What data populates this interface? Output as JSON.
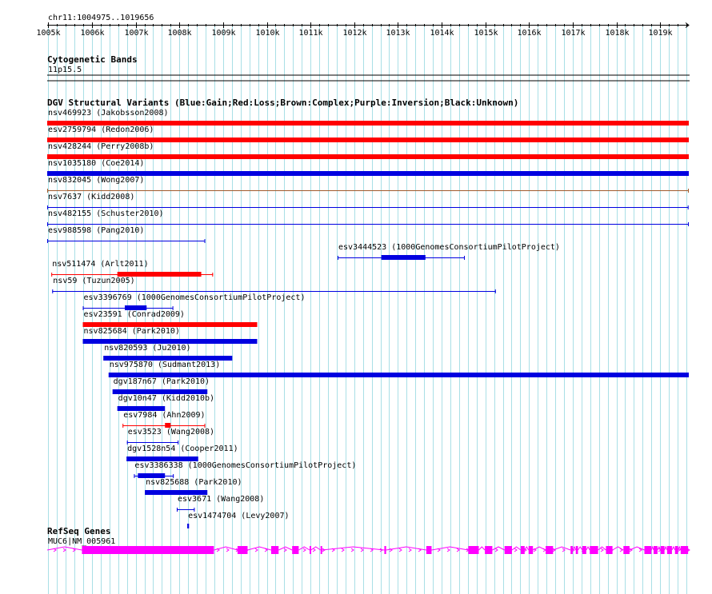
{
  "region": {
    "label": "chr11:1004975..1019656",
    "start": 1004975,
    "end": 1019656
  },
  "ruler": {
    "ticks": [
      "1005k",
      "1006k",
      "1007k",
      "1008k",
      "1009k",
      "1010k",
      "1011k",
      "1012k",
      "1013k",
      "1014k",
      "1015k",
      "1016k",
      "1017k",
      "1018k",
      "1019k"
    ]
  },
  "tracks": {
    "cytoband": {
      "title": "Cytogenetic Bands",
      "band_label": "11p15.5"
    },
    "dgv": {
      "title": "DGV Structural Variants (Blue:Gain;Red:Loss;Brown:Complex;Purple:Inversion;Black:Unknown)"
    },
    "refseq": {
      "title": "RefSeq Genes",
      "gene_label": "MUC6|NM_005961"
    }
  },
  "colors": {
    "gain": "#0000e0",
    "loss": "#ff0000",
    "complex": "#a05a2c",
    "gene": "#ff00ff",
    "grid": "#a9dfe6"
  },
  "variants": [
    {
      "label": "nsv469923 (Jakobsson2008)",
      "type": "loss",
      "start": 1004975,
      "end": 1019656,
      "style": "solid"
    },
    {
      "label": "esv2759794 (Redon2006)",
      "type": "loss",
      "start": 1004975,
      "end": 1019656,
      "style": "solid"
    },
    {
      "label": "nsv428244 (Perry2008b)",
      "type": "loss",
      "start": 1004975,
      "end": 1019656,
      "style": "solid"
    },
    {
      "label": "nsv1035180 (Coe2014)",
      "type": "gain",
      "start": 1004975,
      "end": 1019656,
      "style": "solid"
    },
    {
      "label": "nsv832045 (Wong2007)",
      "type": "complex",
      "start": 1004975,
      "end": 1019656,
      "style": "line"
    },
    {
      "label": "nsv7637 (Kidd2008)",
      "type": "gain",
      "start": 1004975,
      "end": 1019650,
      "style": "line"
    },
    {
      "label": "nsv482155 (Schuster2010)",
      "type": "gain",
      "start": 1004975,
      "end": 1019656,
      "style": "line"
    },
    {
      "label": "esv988598 (Pang2010)",
      "type": "gain",
      "start": 1004975,
      "end": 1008590,
      "style": "line"
    },
    {
      "label": "esv3444523 (1000GenomesConsortiumPilotProject)",
      "type": "gain",
      "start": 1011620,
      "end": 1014530,
      "style": "interval",
      "inner_start": 1012620,
      "inner_end": 1013630
    },
    {
      "label": "nsv511474 (Arlt2011)",
      "type": "loss",
      "start": 1005070,
      "end": 1008770,
      "style": "interval",
      "inner_start": 1006580,
      "inner_end": 1008500
    },
    {
      "label": "nsv59 (Tuzun2005)",
      "type": "gain",
      "start": 1005090,
      "end": 1015240,
      "style": "line"
    },
    {
      "label": "esv3396769 (1000GenomesConsortiumPilotProject)",
      "type": "gain",
      "start": 1005790,
      "end": 1007860,
      "style": "interval",
      "inner_start": 1006750,
      "inner_end": 1007250
    },
    {
      "label": "esv23591 (Conrad2009)",
      "type": "loss",
      "start": 1005790,
      "end": 1009780,
      "style": "solid"
    },
    {
      "label": "nsv825684 (Park2010)",
      "type": "gain",
      "start": 1005790,
      "end": 1009780,
      "style": "solid"
    },
    {
      "label": "nsv820593 (Ju2010)",
      "type": "gain",
      "start": 1006260,
      "end": 1009210,
      "style": "solid"
    },
    {
      "label": "nsv975870 (Sudmant2013)",
      "type": "gain",
      "start": 1006380,
      "end": 1019656,
      "style": "solid"
    },
    {
      "label": "dgv187n67 (Park2010)",
      "type": "gain",
      "start": 1006470,
      "end": 1008640,
      "style": "solid"
    },
    {
      "label": "dgv10n47 (Kidd2010b)",
      "type": "gain",
      "start": 1006580,
      "end": 1007670,
      "style": "solid"
    },
    {
      "label": "esv7984 (Ahn2009)",
      "type": "loss",
      "start": 1006700,
      "end": 1008590,
      "style": "interval",
      "inner_start": 1007670,
      "inner_end": 1007800
    },
    {
      "label": "esv3523 (Wang2008)",
      "type": "gain",
      "start": 1006800,
      "end": 1007980,
      "style": "line"
    },
    {
      "label": "dgv1528n54 (Cooper2011)",
      "type": "gain",
      "start": 1006790,
      "end": 1008430,
      "style": "solid"
    },
    {
      "label": "esv3386338 (1000GenomesConsortiumPilotProject)",
      "type": "gain",
      "start": 1006960,
      "end": 1007870,
      "style": "interval",
      "inner_start": 1007050,
      "inner_end": 1007670
    },
    {
      "label": "nsv825688 (Park2010)",
      "type": "gain",
      "start": 1007210,
      "end": 1008640,
      "style": "solid"
    },
    {
      "label": "esv3671 (Wang2008)",
      "type": "gain",
      "start": 1007940,
      "end": 1008350,
      "style": "line"
    },
    {
      "label": "esv1474704 (Levy2007)",
      "type": "gain",
      "start": 1008180,
      "end": 1008220,
      "style": "solid"
    }
  ],
  "gene": {
    "start": 1004975,
    "end": 1019656,
    "exons": [
      [
        1005770,
        1008790
      ],
      [
        1009330,
        1009560
      ],
      [
        1010100,
        1010270
      ],
      [
        1010580,
        1010730
      ],
      [
        1010980,
        1011010
      ],
      [
        1011230,
        1011260
      ],
      [
        1012690,
        1012730
      ],
      [
        1013650,
        1013770
      ],
      [
        1014610,
        1014850
      ],
      [
        1014990,
        1015160
      ],
      [
        1015440,
        1015610
      ],
      [
        1015810,
        1015900
      ],
      [
        1015990,
        1016090
      ],
      [
        1016380,
        1016550
      ],
      [
        1016950,
        1017000
      ],
      [
        1017070,
        1017120
      ],
      [
        1017220,
        1017310
      ],
      [
        1017390,
        1017580
      ],
      [
        1017760,
        1017910
      ],
      [
        1018160,
        1018300
      ],
      [
        1018640,
        1018800
      ],
      [
        1018850,
        1018940
      ],
      [
        1019010,
        1019100
      ],
      [
        1019160,
        1019270
      ],
      [
        1019340,
        1019410
      ],
      [
        1019470,
        1019640
      ]
    ]
  }
}
